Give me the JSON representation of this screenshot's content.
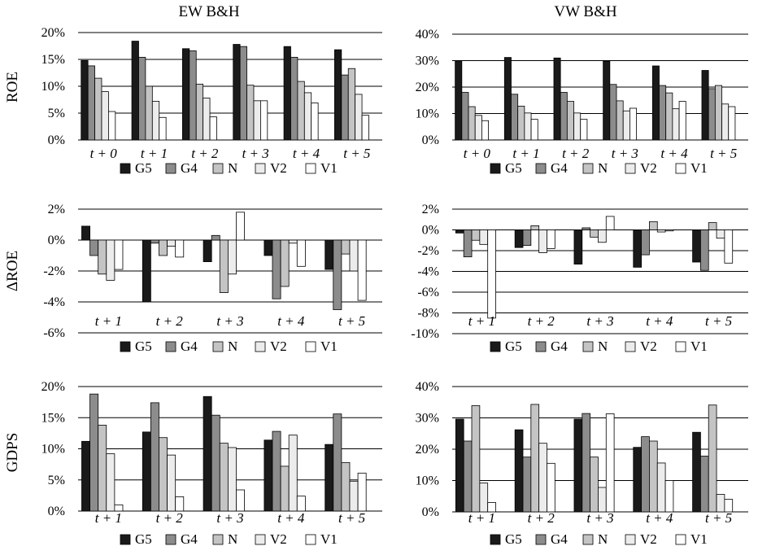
{
  "col_titles": [
    "EW B&H",
    "VW B&H"
  ],
  "row_labels": [
    "ROE",
    "ΔROE",
    "GDPS"
  ],
  "legend": [
    "G5",
    "G4",
    "N",
    "V2",
    "V1"
  ],
  "series_colors": [
    "#1a1a1a",
    "#8c8c8c",
    "#c4c4c4",
    "#ececec",
    "#ffffff"
  ],
  "chart_data": [
    {
      "type": "bar",
      "panel": "EW B&H ROE",
      "categories": [
        "t + 0",
        "t + 1",
        "t + 2",
        "t + 3",
        "t + 4",
        "t + 5"
      ],
      "ylim": [
        0,
        20
      ],
      "yticks": [
        0,
        5,
        10,
        15,
        20
      ],
      "tick_suffix": "%",
      "series": [
        {
          "name": "G5",
          "values": [
            14.8,
            18.4,
            17.0,
            17.8,
            17.4,
            16.8
          ]
        },
        {
          "name": "G4",
          "values": [
            13.8,
            15.4,
            16.6,
            17.4,
            15.4,
            12.1
          ]
        },
        {
          "name": "N",
          "values": [
            11.5,
            10.0,
            10.4,
            10.2,
            10.9,
            13.3
          ]
        },
        {
          "name": "V2",
          "values": [
            9.0,
            7.2,
            7.8,
            7.3,
            8.8,
            8.5
          ]
        },
        {
          "name": "V1",
          "values": [
            5.3,
            4.2,
            4.3,
            7.3,
            6.9,
            4.6
          ]
        }
      ]
    },
    {
      "type": "bar",
      "panel": "VW B&H ROE",
      "categories": [
        "t + 0",
        "t + 1",
        "t + 2",
        "t + 3",
        "t + 4",
        "t + 5"
      ],
      "ylim": [
        0,
        40
      ],
      "yticks": [
        0,
        10,
        20,
        30,
        40
      ],
      "tick_suffix": "%",
      "series": [
        {
          "name": "G5",
          "values": [
            29.7,
            31.2,
            31.0,
            29.8,
            28.0,
            26.3
          ]
        },
        {
          "name": "G4",
          "values": [
            18.0,
            17.3,
            18.0,
            21.0,
            20.6,
            19.4
          ]
        },
        {
          "name": "N",
          "values": [
            12.6,
            12.8,
            14.6,
            14.8,
            17.8,
            20.6
          ]
        },
        {
          "name": "V2",
          "values": [
            9.3,
            10.2,
            10.2,
            11.0,
            11.8,
            13.6
          ]
        },
        {
          "name": "V1",
          "values": [
            7.3,
            7.8,
            7.8,
            12.0,
            14.6,
            12.6
          ]
        }
      ]
    },
    {
      "type": "bar",
      "panel": "EW B&H ΔROE",
      "categories": [
        "t + 1",
        "t + 2",
        "t + 3",
        "t + 4",
        "t + 5"
      ],
      "ylim": [
        -6,
        2
      ],
      "yticks": [
        -6,
        -4,
        -2,
        0,
        2
      ],
      "tick_suffix": "%",
      "series": [
        {
          "name": "G5",
          "values": [
            0.9,
            -4.0,
            -1.4,
            -1.0,
            -1.9
          ]
        },
        {
          "name": "G4",
          "values": [
            -1.0,
            -0.2,
            0.3,
            -3.8,
            -4.5
          ]
        },
        {
          "name": "N",
          "values": [
            -2.2,
            -1.0,
            -3.4,
            -3.0,
            -0.9
          ]
        },
        {
          "name": "V2",
          "values": [
            -2.6,
            -0.4,
            -2.2,
            -0.2,
            -2.0
          ]
        },
        {
          "name": "V1",
          "values": [
            -1.9,
            -1.1,
            1.8,
            -1.7,
            -3.9
          ]
        }
      ]
    },
    {
      "type": "bar",
      "panel": "VW B&H ΔROE",
      "categories": [
        "t + 1",
        "t + 2",
        "t + 3",
        "t + 4",
        "t + 5"
      ],
      "ylim": [
        -10,
        2
      ],
      "yticks": [
        -10,
        -8,
        -6,
        -4,
        -2,
        0,
        2
      ],
      "tick_suffix": "%",
      "series": [
        {
          "name": "G5",
          "values": [
            -0.3,
            -1.7,
            -3.3,
            -3.6,
            -3.1
          ]
        },
        {
          "name": "G4",
          "values": [
            -2.6,
            -1.5,
            0.2,
            -2.4,
            -3.9
          ]
        },
        {
          "name": "N",
          "values": [
            -1.0,
            0.4,
            -0.7,
            0.8,
            0.7
          ]
        },
        {
          "name": "V2",
          "values": [
            -1.4,
            -2.2,
            -1.2,
            -0.2,
            -0.8
          ]
        },
        {
          "name": "V1",
          "values": [
            -8.5,
            -1.8,
            1.3,
            -0.1,
            -3.2
          ]
        }
      ]
    },
    {
      "type": "bar",
      "panel": "EW B&H GDPS",
      "categories": [
        "t + 1",
        "t + 2",
        "t + 3",
        "t + 4",
        "t + 5"
      ],
      "ylim": [
        0,
        20
      ],
      "yticks": [
        0,
        5,
        10,
        15,
        20
      ],
      "tick_suffix": "%",
      "series": [
        {
          "name": "G5",
          "values": [
            11.2,
            12.7,
            18.4,
            11.4,
            10.7
          ]
        },
        {
          "name": "G4",
          "values": [
            18.8,
            17.4,
            15.4,
            12.8,
            15.6
          ]
        },
        {
          "name": "N",
          "values": [
            13.8,
            11.8,
            10.9,
            7.2,
            7.8
          ]
        },
        {
          "name": "V2",
          "values": [
            9.2,
            9.0,
            10.2,
            12.2,
            4.8
          ]
        },
        {
          "name": "V1",
          "values": [
            1.0,
            2.3,
            3.4,
            2.4,
            6.1
          ]
        }
      ]
    },
    {
      "type": "bar",
      "panel": "VW B&H GDPS",
      "categories": [
        "t + 1",
        "t + 2",
        "t + 3",
        "t + 4",
        "t + 5"
      ],
      "ylim": [
        0,
        40
      ],
      "yticks": [
        0,
        10,
        20,
        30,
        40
      ],
      "tick_suffix": "%",
      "series": [
        {
          "name": "G5",
          "values": [
            29.6,
            26.2,
            29.6,
            20.6,
            25.4
          ]
        },
        {
          "name": "G4",
          "values": [
            22.6,
            17.5,
            31.4,
            24.0,
            17.8
          ]
        },
        {
          "name": "N",
          "values": [
            33.9,
            34.3,
            17.5,
            22.6,
            34.1
          ]
        },
        {
          "name": "V2",
          "values": [
            9.2,
            21.9,
            7.8,
            15.6,
            5.6
          ]
        },
        {
          "name": "V1",
          "values": [
            3.0,
            15.5,
            31.3,
            10.0,
            4.0
          ]
        }
      ]
    }
  ]
}
